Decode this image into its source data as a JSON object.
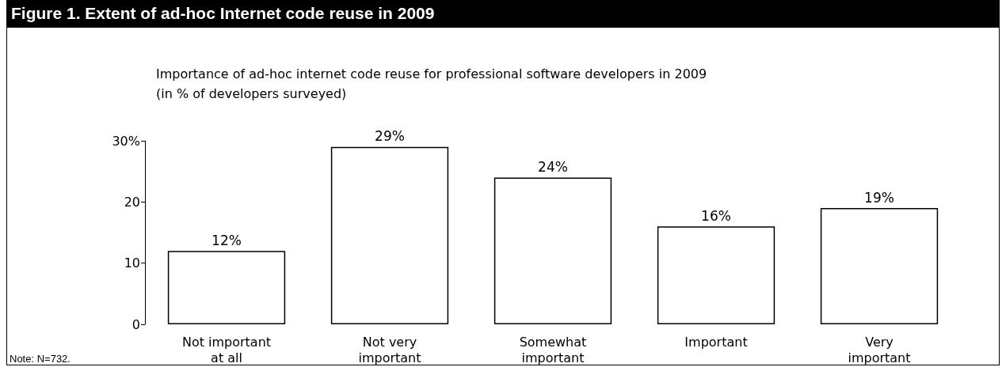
{
  "chart_data": {
    "type": "bar",
    "title": "Figure 1. Extent of ad-hoc Internet code reuse in 2009",
    "subtitle": "Importance of ad-hoc internet code reuse for professional software developers in 2009\n(in % of developers surveyed)",
    "categories": [
      "Not important\nat all",
      "Not very\nimportant",
      "Somewhat\nimportant",
      "Important",
      "Very\nimportant"
    ],
    "values": [
      12,
      29,
      24,
      16,
      19
    ],
    "value_labels": [
      "12%",
      "29%",
      "24%",
      "16%",
      "19%"
    ],
    "color": "#ffffff",
    "ylim": [
      0,
      30
    ],
    "yticks": [
      0,
      10,
      20,
      {
        "value": 30,
        "label": "30%"
      }
    ],
    "annotations": [
      "Note:  N=732."
    ]
  }
}
